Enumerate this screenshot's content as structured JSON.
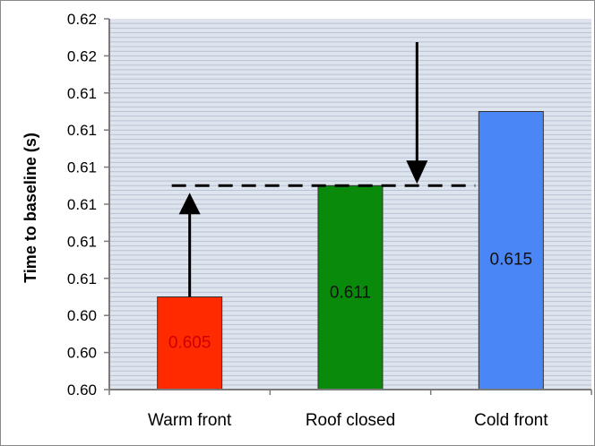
{
  "chart_data": {
    "type": "bar",
    "categories": [
      "Warm front",
      "Roof closed",
      "Cold front"
    ],
    "values": [
      0.605,
      0.611,
      0.615
    ],
    "data_labels": [
      "0.605",
      "0.611",
      "0.615"
    ],
    "ylabel": "Time to baseline (s)",
    "ylim": [
      0.6,
      0.62
    ],
    "yticks": [
      0.6,
      0.602,
      0.604,
      0.606,
      0.608,
      0.61,
      0.612,
      0.614,
      0.616,
      0.618,
      0.62
    ],
    "ytick_labels": [
      "0.60",
      "0.60",
      "0.60",
      "0.61",
      "0.61",
      "0.61",
      "0.61",
      "0.61",
      "0.61",
      "0.62",
      "0.62"
    ],
    "grid": true,
    "legend": "none",
    "colors": {
      "bars": [
        "#ff2a00",
        "#0a8a0a",
        "#4a86f5"
      ],
      "labels": [
        "#cc0000",
        "#111111",
        "#111111"
      ],
      "plot_background": "#dde4ee",
      "gridline": "#b7c2d3",
      "frame": "#8a8a8a"
    },
    "annotations": {
      "reference_value": 0.611,
      "reference_line_style": "dashed",
      "arrows": [
        {
          "category": "Warm front",
          "from": 0.605,
          "to": 0.611,
          "direction": "up"
        },
        {
          "category": "Cold front",
          "from": 0.615,
          "to": 0.611,
          "direction": "down"
        }
      ]
    }
  }
}
